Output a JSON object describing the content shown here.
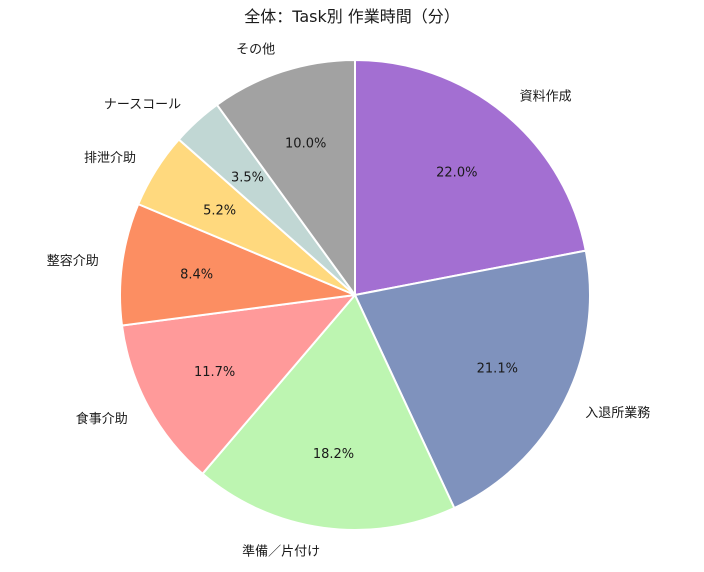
{
  "chart_data": {
    "type": "pie",
    "title": "全体：Task別 作業時間（分）",
    "labels": [
      "資料作成",
      "入退所業務",
      "準備／片付け",
      "食事介助",
      "整容介助",
      "排泄介助",
      "ナースコール",
      "その他"
    ],
    "values": [
      22.0,
      21.1,
      18.2,
      11.7,
      8.4,
      5.2,
      3.5,
      10.0
    ],
    "value_format": "percent_one_decimal",
    "colors": [
      "#A36FD2",
      "#7F92BD",
      "#BDF5B1",
      "#FF9A9A",
      "#FC8E62",
      "#FFD97E",
      "#C1D7D4",
      "#A2A2A2"
    ],
    "start_angle": "top",
    "direction": "clockwise",
    "legend": "none",
    "slice_border_color": "#ffffff",
    "text_color": "#1a1a1a",
    "pct_label_distance": 0.68,
    "category_label_distance": 1.1
  }
}
